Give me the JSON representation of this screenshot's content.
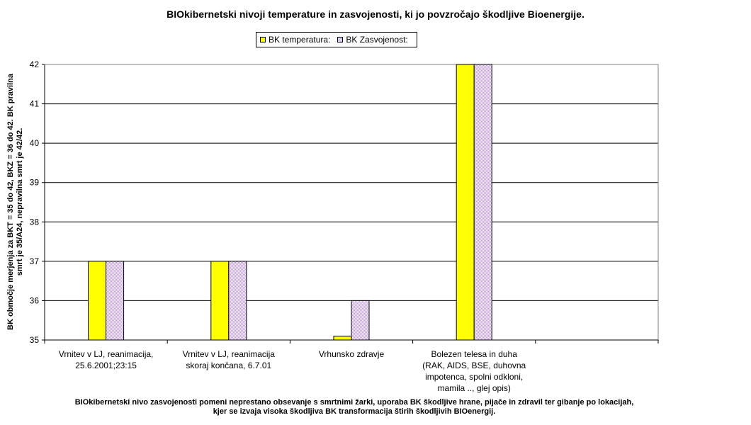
{
  "chart_data": {
    "type": "bar",
    "title": "BIOkibernetski nivoji temperature in zasvojenosti, ki jo povzročajo škodljive Bioenergije.",
    "ylabel_lines": [
      "BK območje merjenja za BKT = 35 do 42, BKZ = 36 do 42. BK pravilna",
      "smrt je 35/A24, nepravilna smrt je 42/42."
    ],
    "ylim": [
      35,
      42
    ],
    "yticks": [
      "35",
      "36",
      "37",
      "38",
      "39",
      "40",
      "41",
      "42"
    ],
    "grid": true,
    "legend_position": "top-center",
    "categories": [
      [
        "Vrnitev v LJ, reanimacija,",
        "25.6.2001;23:15"
      ],
      [
        "Vrnitev v LJ, reanimacija",
        "skoraj končana, 6.7.01"
      ],
      [
        "Vrhunsko zdravje"
      ],
      [
        "Bolezen telesa in duha",
        "(RAK, AIDS, BSE, duhovna",
        "impotenca, spolni odkloni,",
        "mamila .., glej opis)"
      ],
      [
        ""
      ]
    ],
    "series": [
      {
        "name": "BK temperatura:",
        "color": "#ffff00",
        "values": [
          37,
          37,
          35.1,
          42,
          null
        ]
      },
      {
        "name": "BK Zasvojenost:",
        "color": "#cc99ff",
        "pattern": "checker",
        "values": [
          37,
          37,
          36,
          42,
          null
        ]
      }
    ]
  },
  "footer": {
    "line1": "BIOkibernetski nivo zasvojenosti pomeni neprestano obsevanje s smrtnimi žarki, uporaba BK škodljive hrane, pijače in zdravil ter gibanje po lokacijah,",
    "line2": "kjer se izvaja visoka škodljiva BK transformacija štirih škodljivih BIOenergij."
  }
}
